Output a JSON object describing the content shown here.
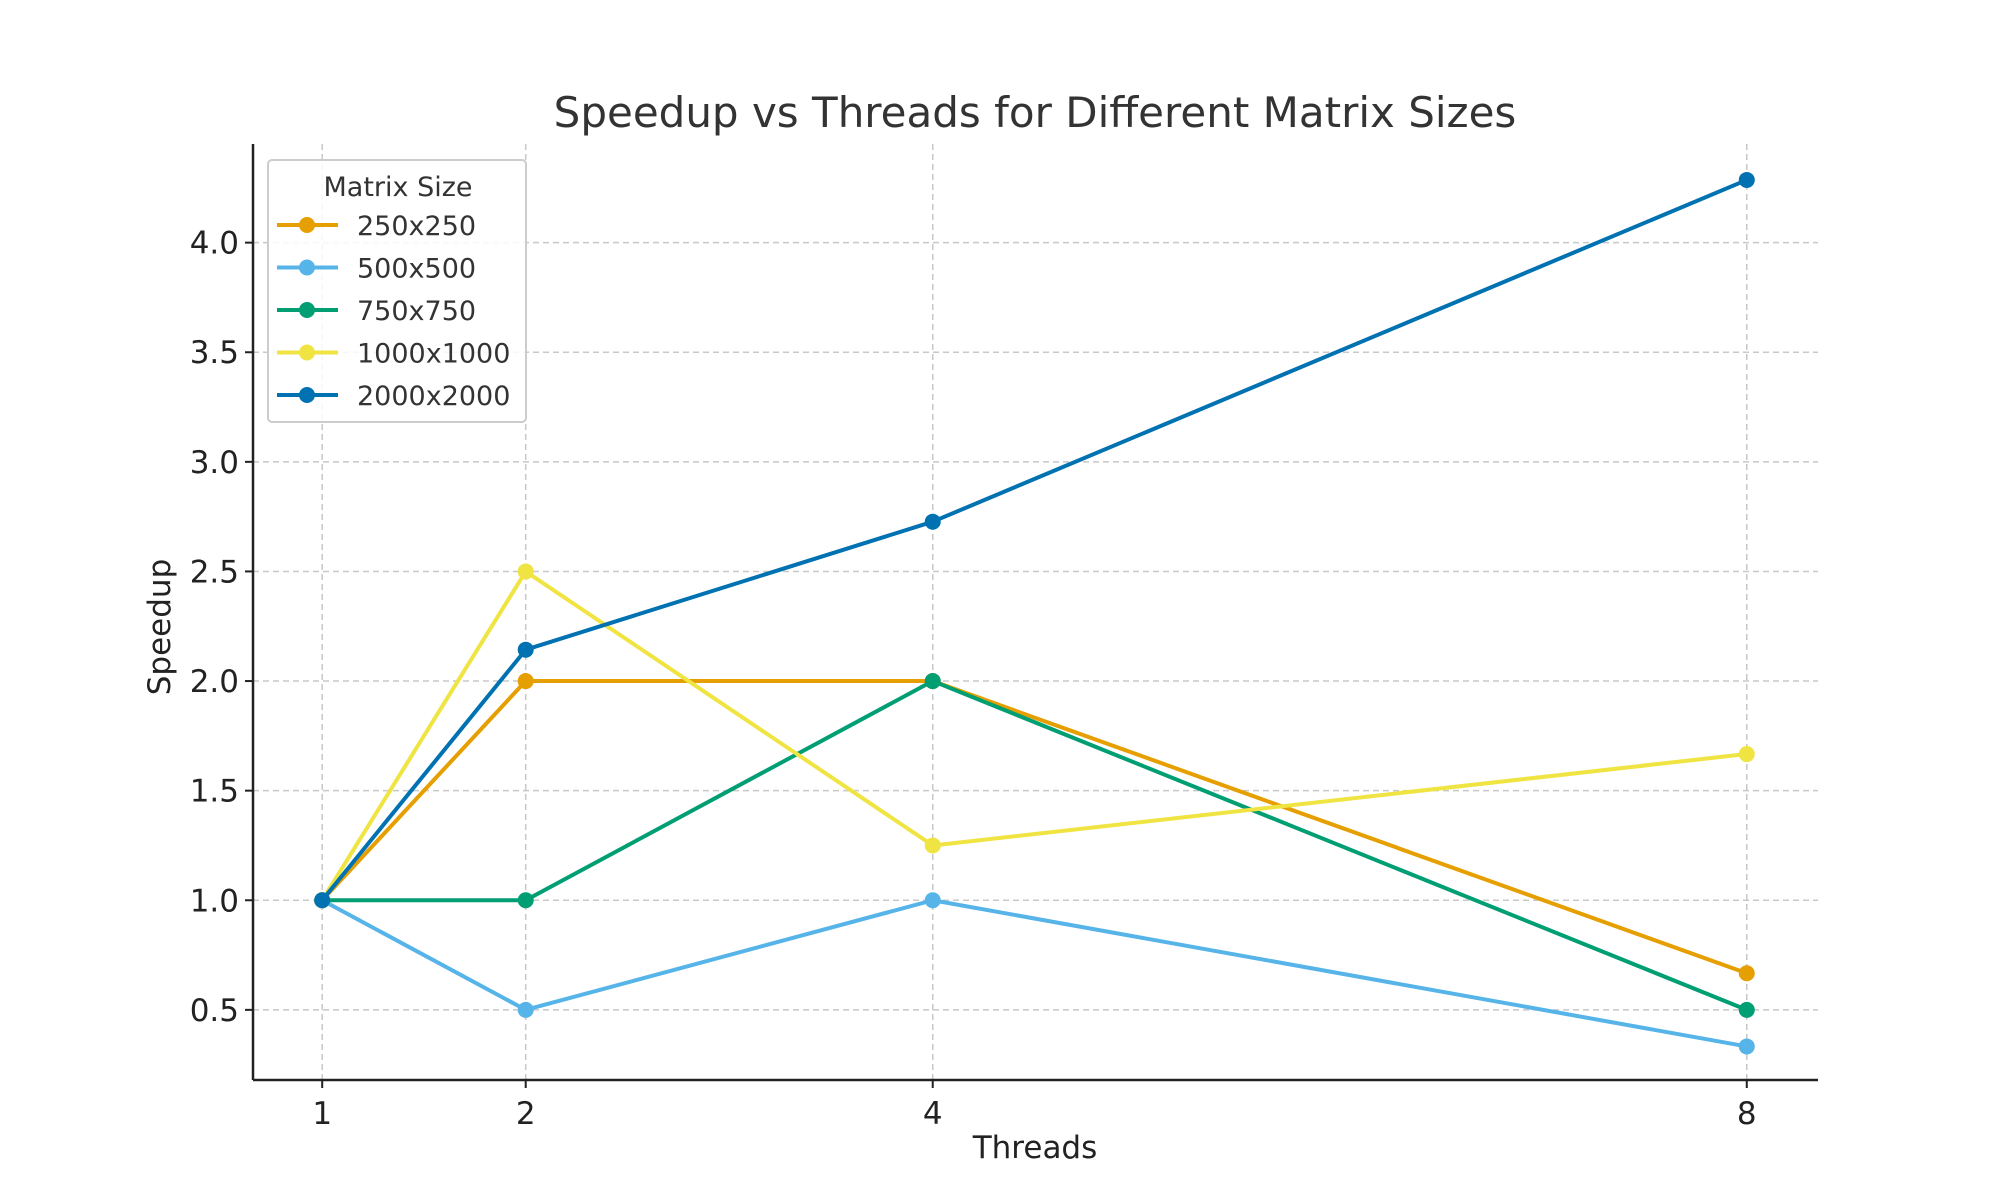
{
  "chart_data": {
    "type": "line",
    "title": "Speedup vs Threads for Different Matrix Sizes",
    "xlabel": "Threads",
    "ylabel": "Speedup",
    "x": [
      1,
      2,
      4,
      8
    ],
    "x_ticks": [
      1,
      2,
      4,
      8
    ],
    "y_ticks": [
      0.5,
      1.0,
      1.5,
      2.0,
      2.5,
      3.0,
      3.5,
      4.0
    ],
    "y_tick_labels": [
      "0.5",
      "1.0",
      "1.5",
      "2.0",
      "2.5",
      "3.0",
      "3.5",
      "4.0"
    ],
    "xlim": [
      0.66,
      8.35
    ],
    "ylim": [
      0.18,
      4.45
    ],
    "grid": true,
    "legend": {
      "title": "Matrix Size",
      "placement": "top-left"
    },
    "series": [
      {
        "name": "250x250",
        "color": "#E69F00",
        "values": [
          1.0,
          2.0,
          2.0,
          0.667
        ]
      },
      {
        "name": "500x500",
        "color": "#56B4E9",
        "values": [
          1.0,
          0.5,
          1.0,
          0.333
        ]
      },
      {
        "name": "750x750",
        "color": "#009E73",
        "values": [
          1.0,
          1.0,
          2.0,
          0.5
        ]
      },
      {
        "name": "1000x1000",
        "color": "#F0E442",
        "values": [
          1.0,
          2.5,
          1.25,
          1.667
        ]
      },
      {
        "name": "2000x2000",
        "color": "#0072B2",
        "values": [
          1.0,
          2.143,
          2.727,
          4.286
        ]
      }
    ]
  }
}
